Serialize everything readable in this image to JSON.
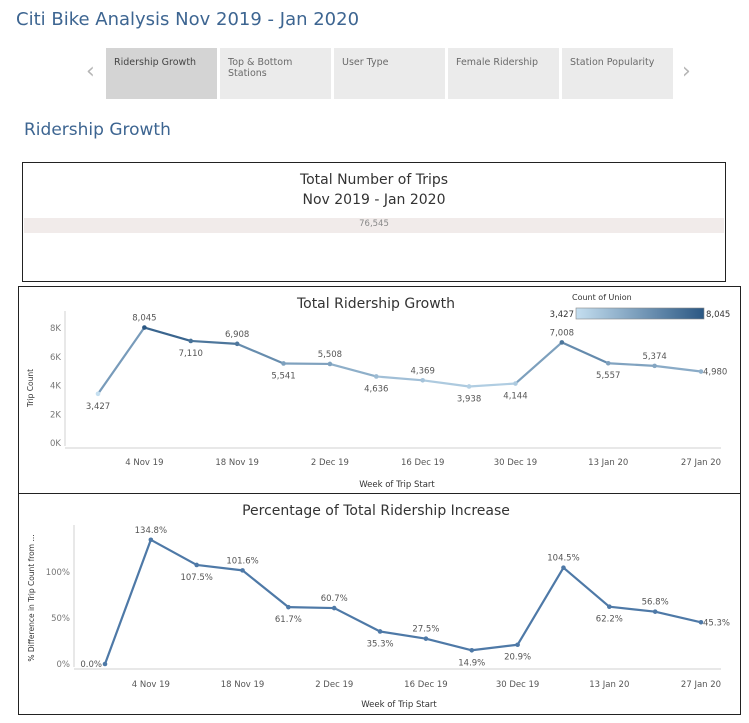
{
  "app": {
    "title": "Citi Bike Analysis Nov 2019 - Jan 2020"
  },
  "nav": {
    "tabs": [
      {
        "label": "Ridership Growth",
        "active": true
      },
      {
        "label": "Top & Bottom Stations",
        "active": false
      },
      {
        "label": "User Type",
        "active": false
      },
      {
        "label": "Female Ridership",
        "active": false
      },
      {
        "label": "Station Popularity",
        "active": false
      }
    ],
    "prev_icon": "chevron-left-icon",
    "next_icon": "chevron-right-icon"
  },
  "section": {
    "title": "Ridership Growth"
  },
  "kpi": {
    "title_line1": "Total Number of Trips",
    "title_line2": "Nov 2019 - Jan 2020",
    "value": "76,545"
  },
  "chart_data": [
    {
      "type": "line",
      "title": "Total Ridership Growth",
      "xlabel": "Week of Trip Start",
      "ylabel": "Trip Count",
      "ylim": [
        0,
        8500
      ],
      "yticks": [
        "0K",
        "2K",
        "4K",
        "6K",
        "8K"
      ],
      "ytick_values": [
        0,
        2000,
        4000,
        6000,
        8000
      ],
      "xtick_labels": [
        "4 Nov 19",
        "18 Nov 19",
        "2 Dec 19",
        "16 Dec 19",
        "30 Dec 19",
        "13 Jan 20",
        "27 Jan 20"
      ],
      "xtick_indices": [
        1,
        3,
        5,
        7,
        9,
        11,
        13
      ],
      "weeks": [
        "28 Oct 19",
        "4 Nov 19",
        "11 Nov 19",
        "18 Nov 19",
        "25 Nov 19",
        "2 Dec 19",
        "9 Dec 19",
        "16 Dec 19",
        "23 Dec 19",
        "30 Dec 19",
        "6 Jan 20",
        "13 Jan 20",
        "20 Jan 20",
        "27 Jan 20"
      ],
      "values": [
        3427,
        8045,
        7110,
        6908,
        5541,
        5508,
        4636,
        4369,
        3938,
        4144,
        7008,
        5557,
        5374,
        4980
      ],
      "labels": [
        "3,427",
        "8,045",
        "7,110",
        "6,908",
        "5,541",
        "5,508",
        "4,636",
        "4,369",
        "3,938",
        "4,144",
        "7,008",
        "5,557",
        "5,374",
        "4,980"
      ],
      "label_pos": [
        "below",
        "above",
        "below",
        "above",
        "below",
        "above",
        "below",
        "above",
        "below",
        "below",
        "above",
        "below",
        "above",
        "right"
      ],
      "legend": {
        "title": "Count of Union",
        "min_label": "3,427",
        "max_label": "8,045",
        "color_min": "#c5dff0",
        "color_max": "#2a5783",
        "placement": "top-right"
      },
      "grid": false
    },
    {
      "type": "line",
      "title": "Percentage of Total Ridership Increase",
      "xlabel": "Week of Trip Start",
      "ylabel": "% Difference in Trip Count from ...",
      "ylim": [
        0,
        140
      ],
      "yticks": [
        "0%",
        "50%",
        "100%"
      ],
      "ytick_values": [
        0,
        50,
        100
      ],
      "xtick_labels": [
        "4 Nov 19",
        "18 Nov 19",
        "2 Dec 19",
        "16 Dec 19",
        "30 Dec 19",
        "13 Jan 20",
        "27 Jan 20"
      ],
      "xtick_indices": [
        1,
        3,
        5,
        7,
        9,
        11,
        13
      ],
      "values": [
        0.0,
        134.8,
        107.5,
        101.6,
        61.7,
        60.7,
        35.3,
        27.5,
        14.9,
        20.9,
        104.5,
        62.2,
        56.8,
        45.3
      ],
      "labels": [
        "0.0%",
        "134.8%",
        "107.5%",
        "101.6%",
        "61.7%",
        "60.7%",
        "35.3%",
        "27.5%",
        "14.9%",
        "20.9%",
        "104.5%",
        "62.2%",
        "56.8%",
        "45.3%"
      ],
      "label_pos": [
        "left",
        "above",
        "below",
        "above",
        "below",
        "above",
        "below",
        "above",
        "below",
        "below",
        "above",
        "below",
        "above",
        "right"
      ],
      "line_color": "#4e79a7",
      "grid": false
    }
  ]
}
